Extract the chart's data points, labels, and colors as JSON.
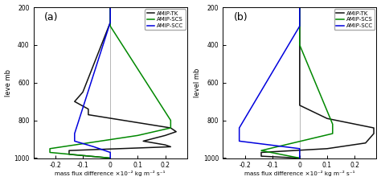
{
  "title_a": "(a)",
  "title_b": "(b)",
  "ylabel_a": "leve mb",
  "ylabel_b": "level mb",
  "xlabel": "mass flux difference ×10⁻² kg m⁻² s⁻¹",
  "xlim": [
    -0.28,
    0.28
  ],
  "ylim": [
    1000,
    200
  ],
  "yticks": [
    200,
    400,
    600,
    800,
    1000
  ],
  "xticks": [
    -0.2,
    -0.1,
    0.0,
    0.1,
    0.2
  ],
  "legend_labels": [
    "AMIP-TK",
    "AMIP-SCS",
    "AMIP-SCC"
  ],
  "legend_colors": [
    "#111111",
    "#008800",
    "#0000dd"
  ],
  "background": "#ffffff",
  "panel_a": {
    "tk_x": [
      0.0,
      0.0,
      -0.1,
      -0.13,
      -0.08,
      -0.08,
      0.22,
      0.24,
      0.2,
      0.12,
      0.2,
      0.22,
      -0.15,
      -0.15,
      0.0
    ],
    "tk_p": [
      200,
      280,
      650,
      700,
      740,
      770,
      840,
      860,
      880,
      910,
      930,
      940,
      960,
      980,
      1000
    ],
    "scs_x": [
      0.0,
      0.0,
      0.22,
      0.22,
      0.1,
      -0.22,
      -0.22,
      0.0
    ],
    "scs_p": [
      200,
      300,
      800,
      840,
      880,
      950,
      970,
      1000
    ],
    "scc_x": [
      0.0,
      0.0,
      -0.13,
      -0.13,
      -0.06,
      0.0,
      0.0
    ],
    "scc_p": [
      200,
      280,
      870,
      910,
      940,
      970,
      1000
    ]
  },
  "panel_b": {
    "tk_x": [
      0.0,
      0.0,
      0.0,
      0.1,
      0.27,
      0.27,
      0.24,
      0.1,
      -0.14,
      -0.14,
      0.0
    ],
    "tk_p": [
      200,
      300,
      720,
      790,
      840,
      870,
      920,
      950,
      970,
      990,
      1000
    ],
    "scs_x": [
      0.0,
      0.0,
      0.12,
      0.12,
      -0.14,
      0.0
    ],
    "scs_p": [
      200,
      400,
      820,
      870,
      960,
      1000
    ],
    "scc_x": [
      0.0,
      0.0,
      -0.22,
      -0.22,
      0.0,
      0.0
    ],
    "scc_p": [
      200,
      300,
      840,
      910,
      950,
      1000
    ]
  }
}
